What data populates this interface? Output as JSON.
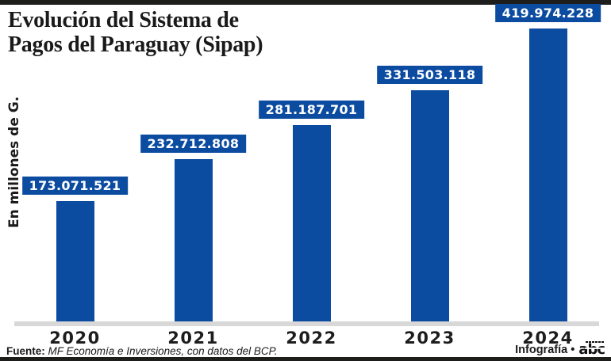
{
  "masthead": {
    "title_line1": "Evolución del Sistema de",
    "title_line2": "Pagos del Paraguay (Sipap)"
  },
  "chart_data": {
    "type": "bar",
    "title": "Evolución del Sistema de Pagos del Paraguay (Sipap)",
    "ylabel": "En millones de G.",
    "xlabel": "",
    "categories": [
      "2020",
      "2021",
      "2022",
      "2023",
      "2024"
    ],
    "values": [
      173071521,
      232712808,
      281187701,
      331503118,
      419974228
    ],
    "value_labels": [
      "173.071.521",
      "232.712.808",
      "281.187.701",
      "331.503.118",
      "419.974.228"
    ],
    "ylim": [
      0,
      419974228
    ],
    "grid": false,
    "legend": "none",
    "bar_color": "#0b4ba0"
  },
  "footer": {
    "source_label": "Fuente:",
    "source_text": "MF Economía e Inversiones, con datos del BCP.",
    "credit_text": "Infografía •",
    "brand": "abc"
  },
  "colors": {
    "bar_blue": "#0b4ba0",
    "frame_black": "#1d1d1b",
    "baseline_gray": "#d8d8d8"
  }
}
